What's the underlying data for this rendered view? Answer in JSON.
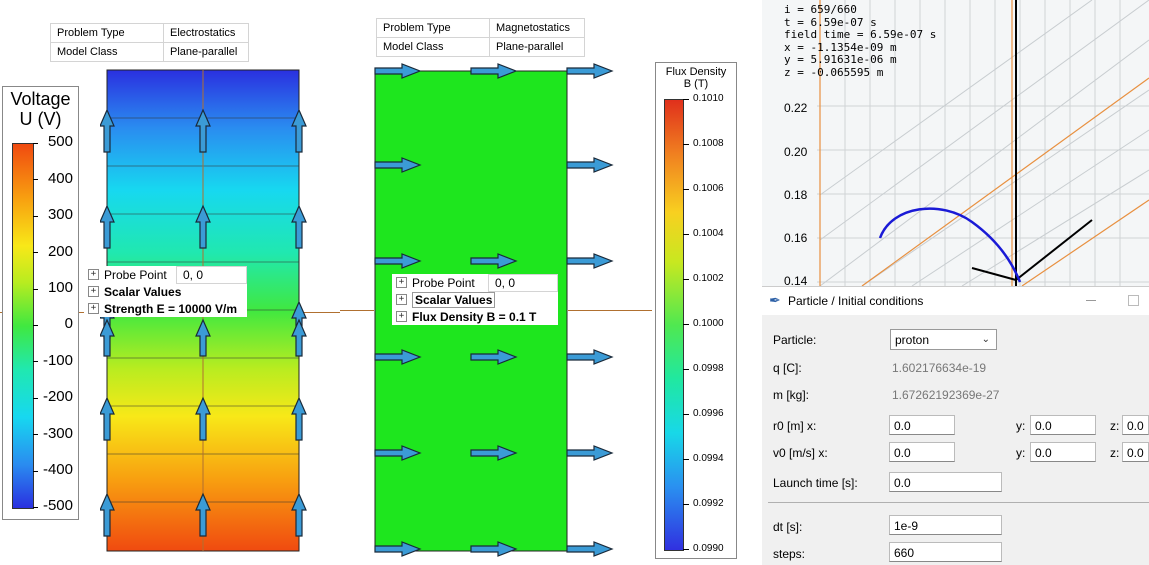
{
  "electro": {
    "props": [
      {
        "key": "Problem Type",
        "value": "Electrostatics"
      },
      {
        "key": "Model Class",
        "value": "Plane-parallel"
      }
    ],
    "colorbar_title_1": "Voltage",
    "colorbar_title_2": "U (V)",
    "ticks": [
      "500",
      "400",
      "300",
      "200",
      "100",
      "0",
      "-100",
      "-200",
      "-300",
      "-400",
      "-500"
    ],
    "probe_point_label": "Probe Point",
    "probe_point_value": "0, 0",
    "scalar_values_label": "Scalar Values",
    "strength_label": "Strength E = 10000 V/m"
  },
  "magneto": {
    "props": [
      {
        "key": "Problem Type",
        "value": "Magnetostatics"
      },
      {
        "key": "Model Class",
        "value": "Plane-parallel"
      }
    ],
    "colorbar_title_1": "Flux Density",
    "colorbar_title_2": "B (T)",
    "ticks": [
      "0.1010",
      "0.1008",
      "0.1006",
      "0.1004",
      "0.1002",
      "0.1000",
      "0.0998",
      "0.0996",
      "0.0994",
      "0.0992",
      "0.0990"
    ],
    "probe_point_label": "Probe Point",
    "probe_point_value": "0, 0",
    "scalar_values_label": "Scalar Values",
    "flux_label": "Flux Density B = 0.1 T"
  },
  "trajectory": {
    "info": "i = 659/660\nt = 6.59e-07 s\nfield time = 6.59e-07 s\nx = -1.1354e-09 m\ny = 5.91631e-06 m\nz = -0.065595 m",
    "yticks": [
      "0.22",
      "0.20",
      "0.18",
      "0.16",
      "0.14"
    ]
  },
  "dialog": {
    "title": "Particle / Initial conditions",
    "particle_label": "Particle:",
    "particle_value": "proton",
    "q_label": "q [C]:",
    "q_value": "1.602176634e-19",
    "m_label": "m [kg]:",
    "m_value": "1.67262192369e-27",
    "r0_label": "r0 [m]  x:",
    "r0_x": "0.0",
    "r0_y_label": "y:",
    "r0_y": "0.0",
    "r0_z_label": "z:",
    "r0_z": "0.0",
    "v0_label": "v0 [m/s] x:",
    "v0_x": "0.0",
    "v0_y_label": "y:",
    "v0_y": "0.0",
    "v0_z_label": "z:",
    "v0_z": "0.0",
    "launch_label": "Launch time [s]:",
    "launch_value": "0.0",
    "dt_label": "dt [s]:",
    "dt_value": "1e-9",
    "steps_label": "steps:",
    "steps_value": "660"
  },
  "colors": {
    "field_green": "#1ee61e",
    "arrow_fill": "#3b9bd6",
    "trajectory": "#1a1ad6",
    "axis_orange": "#e89040"
  }
}
